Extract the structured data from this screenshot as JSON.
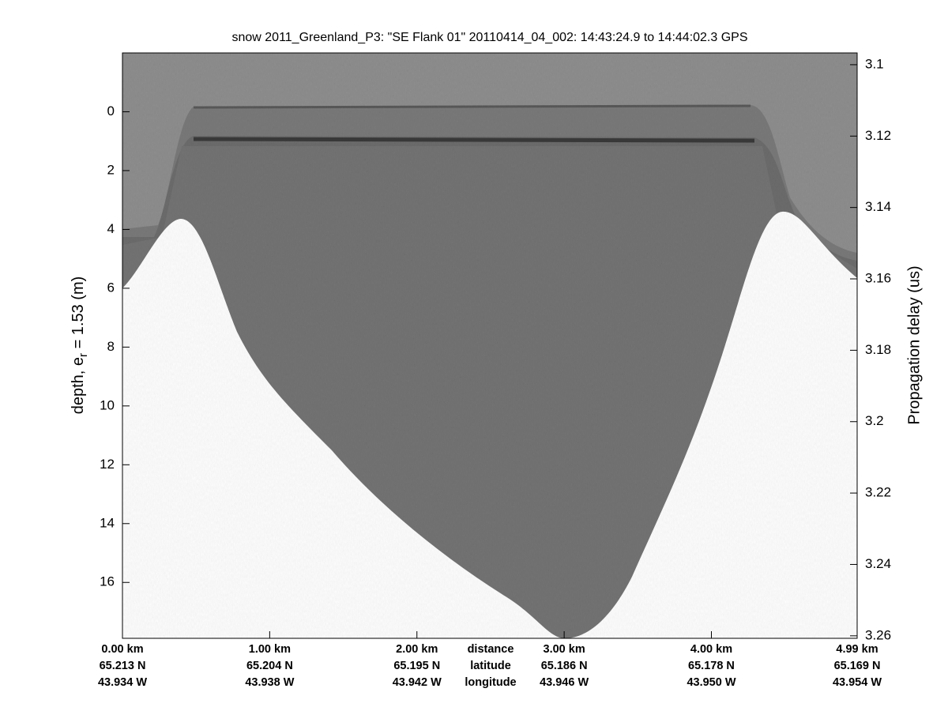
{
  "chart_data": {
    "type": "radargram",
    "title": "snow 2011_Greenland_P3: \"SE Flank 01\"  20110414_04_002: 14:43:24.9 to 14:44:02.3 GPS",
    "ylabel": {
      "text": "depth, e",
      "subscript": "r",
      "rest": " = 1.53 (m)"
    },
    "y2label": "Propagation delay (us)",
    "xlim": [
      0,
      4.99
    ],
    "xticks": [
      {
        "value": 0,
        "label": "0.00 km"
      },
      {
        "value": 1,
        "label": "1.00 km"
      },
      {
        "value": 2,
        "label": "2.00 km"
      },
      {
        "value": 3,
        "label": "3.00 km"
      },
      {
        "value": 4,
        "label": "4.00 km"
      },
      {
        "value": 4.99,
        "label": "4.99 km"
      }
    ],
    "latitudes": [
      "65.213 N",
      "65.204 N",
      "65.195 N",
      "65.186 N",
      "65.178 N",
      "65.169 N"
    ],
    "longitudes": [
      "43.934 W",
      "43.938 W",
      "43.942 W",
      "43.946 W",
      "43.950 W",
      "43.954 W"
    ],
    "xtick_row_titles": [
      "distance",
      "latitude",
      "longitude"
    ],
    "ylim": [
      -2,
      17.9
    ],
    "yticks": [
      0,
      2,
      4,
      6,
      8,
      10,
      12,
      14,
      16
    ],
    "y2lim": [
      3.0967,
      3.2607
    ],
    "y2ticks": [
      3.1,
      3.12,
      3.14,
      3.16,
      3.18,
      3.2,
      3.22,
      3.24,
      3.26
    ]
  }
}
